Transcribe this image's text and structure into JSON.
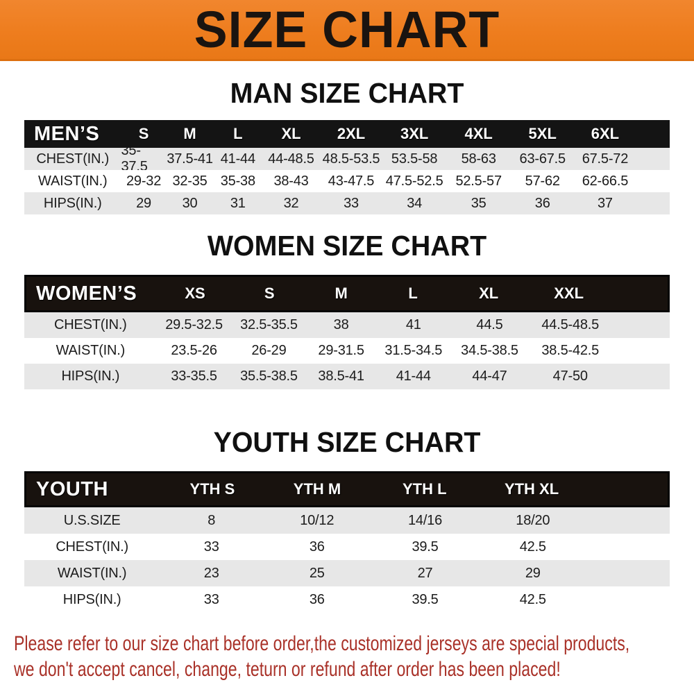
{
  "banner": {
    "title": "SIZE CHART",
    "bg_color": "#EE7D1E",
    "text_color": "#1A1410"
  },
  "chart_data": [
    {
      "type": "table",
      "title": "MAN SIZE CHART",
      "corner_label": "MEN’S",
      "columns": [
        "S",
        "M",
        "L",
        "XL",
        "2XL",
        "3XL",
        "4XL",
        "5XL",
        "6XL"
      ],
      "rows": [
        {
          "label": "CHEST(IN.)",
          "values": [
            "35-37.5",
            "37.5-41",
            "41-44",
            "44-48.5",
            "48.5-53.5",
            "53.5-58",
            "58-63",
            "63-67.5",
            "67.5-72"
          ]
        },
        {
          "label": "WAIST(IN.)",
          "values": [
            "29-32",
            "32-35",
            "35-38",
            "38-43",
            "43-47.5",
            "47.5-52.5",
            "52.5-57",
            "57-62",
            "62-66.5"
          ]
        },
        {
          "label": "HIPS(IN.)",
          "values": [
            "29",
            "30",
            "31",
            "32",
            "33",
            "34",
            "35",
            "36",
            "37"
          ]
        }
      ]
    },
    {
      "type": "table",
      "title": "WOMEN SIZE CHART",
      "corner_label": "WOMEN’S",
      "columns": [
        "XS",
        "S",
        "M",
        "L",
        "XL",
        "XXL"
      ],
      "rows": [
        {
          "label": "CHEST(IN.)",
          "values": [
            "29.5-32.5",
            "32.5-35.5",
            "38",
            "41",
            "44.5",
            "44.5-48.5"
          ]
        },
        {
          "label": "WAIST(IN.)",
          "values": [
            "23.5-26",
            "26-29",
            "29-31.5",
            "31.5-34.5",
            "34.5-38.5",
            "38.5-42.5"
          ]
        },
        {
          "label": "HIPS(IN.)",
          "values": [
            "33-35.5",
            "35.5-38.5",
            "38.5-41",
            "41-44",
            "44-47",
            "47-50"
          ]
        }
      ]
    },
    {
      "type": "table",
      "title": "YOUTH SIZE CHART",
      "corner_label": "YOUTH",
      "columns": [
        "YTH S",
        "YTH M",
        "YTH L",
        "YTH XL"
      ],
      "rows": [
        {
          "label": "U.S.SIZE",
          "values": [
            "8",
            "10/12",
            "14/16",
            "18/20"
          ]
        },
        {
          "label": "CHEST(IN.)",
          "values": [
            "33",
            "36",
            "39.5",
            "42.5"
          ]
        },
        {
          "label": "WAIST(IN.)",
          "values": [
            "23",
            "25",
            "27",
            "29"
          ]
        },
        {
          "label": "HIPS(IN.)",
          "values": [
            "33",
            "36",
            "39.5",
            "42.5"
          ]
        }
      ]
    }
  ],
  "notice": {
    "color": "#A93128",
    "lines": [
      "Please refer to our size chart before order,the customized jerseys are special products,",
      "we don't accept cancel, change, teturn or refund after order has been placed!"
    ]
  }
}
